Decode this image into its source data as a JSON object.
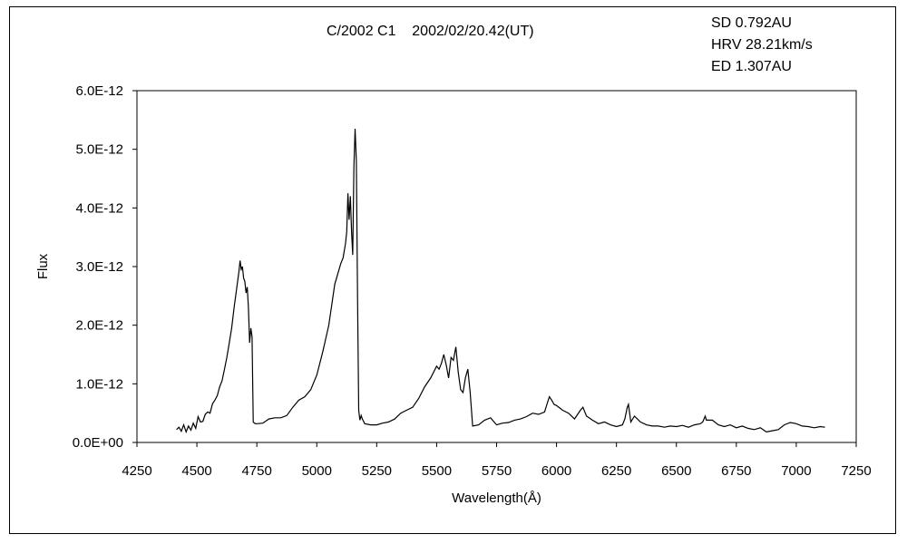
{
  "chart_data": {
    "type": "line",
    "title": "C/2002 C1    2002/02/20.42(UT)",
    "annotations": [
      "SD 0.792AU",
      "HRV 28.21km/s",
      "ED 1.307AU"
    ],
    "xlabel": "Wavelength(Å)",
    "ylabel": "Flux",
    "xlim": [
      4250,
      7250
    ],
    "ylim": [
      0,
      6e-12
    ],
    "x_ticks": [
      4250,
      4500,
      4750,
      5000,
      5250,
      5500,
      5750,
      6000,
      6250,
      6500,
      6750,
      7000,
      7250
    ],
    "x_tick_labels": [
      "4250",
      "4500",
      "4750",
      "5000",
      "5250",
      "5500",
      "5750",
      "6000",
      "6250",
      "6500",
      "6750",
      "7000",
      "7250"
    ],
    "y_ticks": [
      0,
      1e-12,
      2e-12,
      3e-12,
      4e-12,
      5e-12,
      6e-12
    ],
    "y_tick_labels": [
      "0.0E+00",
      "1.0E-12",
      "2.0E-12",
      "3.0E-12",
      "4.0E-12",
      "5.0E-12",
      "6.0E-12"
    ],
    "grid": false,
    "legend": "none",
    "series": [
      {
        "color": "#000000",
        "x": [
          4415,
          4425,
          4435,
          4445,
          4455,
          4465,
          4475,
          4485,
          4495,
          4505,
          4515,
          4525,
          4535,
          4545,
          4555,
          4565,
          4575,
          4585,
          4595,
          4605,
          4615,
          4625,
          4635,
          4645,
          4655,
          4665,
          4675,
          4680,
          4685,
          4690,
          4695,
          4700,
          4705,
          4710,
          4715,
          4720,
          4725,
          4730,
          4735,
          4740,
          4745,
          4750,
          4775,
          4800,
          4825,
          4850,
          4875,
          4900,
          4925,
          4950,
          4975,
          5000,
          5025,
          5050,
          5075,
          5100,
          5110,
          5120,
          5125,
          5130,
          5135,
          5140,
          5145,
          5150,
          5155,
          5160,
          5165,
          5170,
          5175,
          5180,
          5185,
          5190,
          5200,
          5225,
          5250,
          5275,
          5300,
          5325,
          5350,
          5375,
          5400,
          5425,
          5450,
          5475,
          5500,
          5510,
          5520,
          5530,
          5540,
          5550,
          5560,
          5570,
          5580,
          5590,
          5600,
          5610,
          5620,
          5630,
          5640,
          5650,
          5675,
          5700,
          5725,
          5750,
          5775,
          5800,
          5825,
          5850,
          5875,
          5900,
          5925,
          5950,
          5960,
          5970,
          5980,
          5990,
          6000,
          6025,
          6050,
          6075,
          6100,
          6110,
          6125,
          6150,
          6175,
          6200,
          6225,
          6250,
          6275,
          6285,
          6295,
          6300,
          6310,
          6325,
          6350,
          6375,
          6400,
          6425,
          6450,
          6475,
          6500,
          6525,
          6550,
          6575,
          6600,
          6610,
          6620,
          6625,
          6650,
          6675,
          6700,
          6725,
          6750,
          6775,
          6800,
          6825,
          6850,
          6875,
          6900,
          6925,
          6950,
          6975,
          7000,
          7025,
          7050,
          7075,
          7100,
          7120
        ],
        "y": [
          2.2e-13,
          2.6e-13,
          1.9e-13,
          3e-13,
          1.8e-13,
          2.8e-13,
          2.1e-13,
          3.3e-13,
          2.4e-13,
          4.4e-13,
          3.5e-13,
          3.6e-13,
          4.8e-13,
          5.2e-13,
          5e-13,
          6.6e-13,
          7.2e-13,
          8e-13,
          9.5e-13,
          1.05e-12,
          1.25e-12,
          1.45e-12,
          1.7e-12,
          1.95e-12,
          2.3e-12,
          2.6e-12,
          2.9e-12,
          3.1e-12,
          2.95e-12,
          3e-12,
          2.8e-12,
          2.75e-12,
          2.55e-12,
          2.65e-12,
          2.3e-12,
          1.7e-12,
          1.95e-12,
          1.8e-12,
          3.5e-13,
          3.3e-13,
          3.2e-13,
          3.2e-13,
          3.3e-13,
          4e-13,
          4.2e-13,
          4.2e-13,
          4.6e-13,
          6e-13,
          7.2e-13,
          7.8e-13,
          9e-13,
          1.15e-12,
          1.55e-12,
          2e-12,
          2.7e-12,
          3.05e-12,
          3.15e-12,
          3.4e-12,
          3.6e-12,
          4.25e-12,
          3.8e-12,
          4.2e-12,
          3.6e-12,
          3.2e-12,
          4.7e-12,
          5.35e-12,
          4.8e-12,
          2.5e-12,
          5.5e-13,
          3.8e-13,
          4.6e-13,
          4e-13,
          3.2e-13,
          3e-13,
          3e-13,
          3.3e-13,
          3.5e-13,
          4e-13,
          5e-13,
          5.5e-13,
          6e-13,
          7.5e-13,
          9.5e-13,
          1.1e-12,
          1.3e-12,
          1.25e-12,
          1.35e-12,
          1.5e-12,
          1.32e-12,
          1.1e-12,
          1.45e-12,
          1.4e-12,
          1.63e-12,
          1.2e-12,
          9e-13,
          8.5e-13,
          1.1e-12,
          1.25e-12,
          8.5e-13,
          2.8e-13,
          3e-13,
          3.8e-13,
          4.2e-13,
          3e-13,
          3.3e-13,
          3.4e-13,
          3.8e-13,
          4e-13,
          4.4e-13,
          5e-13,
          4.8e-13,
          5.2e-13,
          6.5e-13,
          7.8e-13,
          7.2e-13,
          6.5e-13,
          6.3e-13,
          5.5e-13,
          5e-13,
          4e-13,
          5.5e-13,
          6e-13,
          4.5e-13,
          3.8e-13,
          3.2e-13,
          3.5e-13,
          3e-13,
          2.7e-13,
          3e-13,
          4e-13,
          6e-13,
          6.5e-13,
          3.5e-13,
          4.5e-13,
          3.5e-13,
          3e-13,
          2.8e-13,
          2.8e-13,
          2.6e-13,
          2.8e-13,
          2.7e-13,
          2.9e-13,
          2.6e-13,
          3e-13,
          3.2e-13,
          3.5e-13,
          4.5e-13,
          3.8e-13,
          3.8e-13,
          3e-13,
          2.7e-13,
          3e-13,
          2.5e-13,
          2.8e-13,
          2.4e-13,
          2.2e-13,
          2.5e-13,
          1.8e-13,
          2e-13,
          2.2e-13,
          3e-13,
          3.4e-13,
          3.2e-13,
          2.8e-13,
          2.7e-13,
          2.5e-13,
          2.7e-13,
          2.6e-13
        ]
      }
    ]
  }
}
